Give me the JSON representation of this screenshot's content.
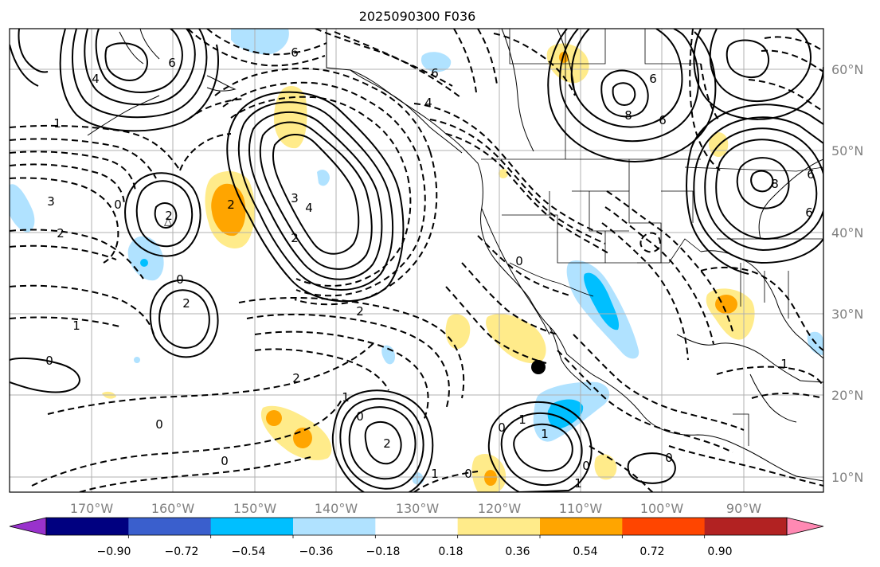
{
  "title": "2025090300 F036",
  "lon_labels": [
    "170°W",
    "160°W",
    "150°W",
    "140°W",
    "130°W",
    "120°W",
    "110°W",
    "100°W",
    "90°W"
  ],
  "lat_labels": [
    "60°N",
    "50°N",
    "40°N",
    "30°N",
    "20°N",
    "10°N"
  ],
  "colorbar": {
    "colors": [
      "#9932cc",
      "#000080",
      "#3a5fcd",
      "#00bfff",
      "#b0e2ff",
      "#ffffff",
      "#ffeb8a",
      "#ffa500",
      "#ff4500",
      "#b22222",
      "#ff89b3"
    ],
    "tick_labels": [
      "−0.90",
      "−0.72",
      "−0.54",
      "−0.36",
      "−0.18",
      "0.18",
      "0.36",
      "0.54",
      "0.72",
      "0.90"
    ]
  },
  "contour_labels": {
    "l1": "6",
    "l2": "4",
    "l3": "6",
    "l4": "1",
    "l5": "6",
    "l6": "6",
    "l7": "4",
    "l8": "8",
    "l9": "8",
    "l10": "6",
    "l11": "6",
    "l12": "3",
    "l13": "2",
    "l14": "0",
    "l15": "2",
    "l16": "2",
    "l17": "4",
    "l18": "3",
    "l19": "2",
    "l20": "0",
    "l21": "0",
    "l22": "2",
    "l23": "1",
    "l24": "2",
    "l25": "0",
    "l26": "2",
    "l27": "1",
    "l28": "0",
    "l29": "0",
    "l30": "1",
    "l31": "2",
    "l32": "0",
    "l33": "1",
    "l34": "0",
    "l35": "1",
    "l36": "0",
    "l37": "1",
    "l38": "0",
    "l39": "0",
    "l40": "1",
    "l41": "6"
  },
  "colors": {
    "positive_fill": "#ffeb8a",
    "positive_strong": "#ffa500",
    "negative_fill": "#b0e2ff",
    "negative_strong": "#00bfff"
  }
}
